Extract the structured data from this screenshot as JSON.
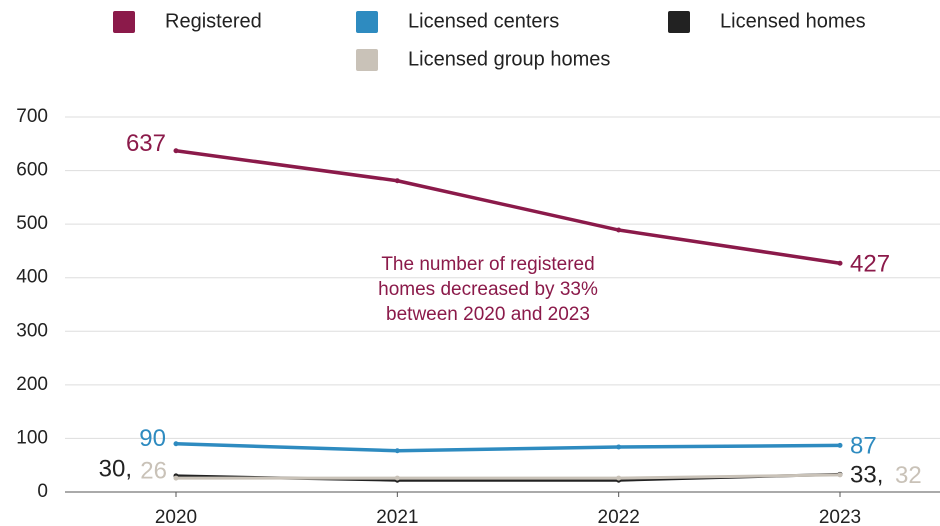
{
  "chart_data": {
    "type": "line",
    "x": [
      2020,
      2021,
      2022,
      2023
    ],
    "xticks": [
      2020,
      2021,
      2022,
      2023
    ],
    "xlim": [
      2020,
      2023
    ],
    "ylim": [
      0,
      700
    ],
    "yticks": [
      0,
      100,
      200,
      300,
      400,
      500,
      600,
      700
    ],
    "grid": true,
    "legend": "top",
    "annotation": [
      "The number of registered",
      "homes decreased by 33%",
      "between 2020 and 2023"
    ],
    "annotation_color": "#8b1a4a",
    "series": [
      {
        "name": "Registered",
        "color": "#8b1a4a",
        "values": [
          637,
          581,
          489,
          427
        ]
      },
      {
        "name": "Licensed centers",
        "color": "#2e8bc0",
        "values": [
          90,
          77,
          84,
          87
        ]
      },
      {
        "name": "Licensed homes",
        "color": "#222222",
        "values": [
          30,
          22,
          22,
          33
        ],
        "value_labels": [
          "30,",
          null,
          null,
          "33,"
        ]
      },
      {
        "name": "Licensed group homes",
        "color": "#c9c2b8",
        "values": [
          26,
          26,
          26,
          32
        ]
      }
    ]
  }
}
